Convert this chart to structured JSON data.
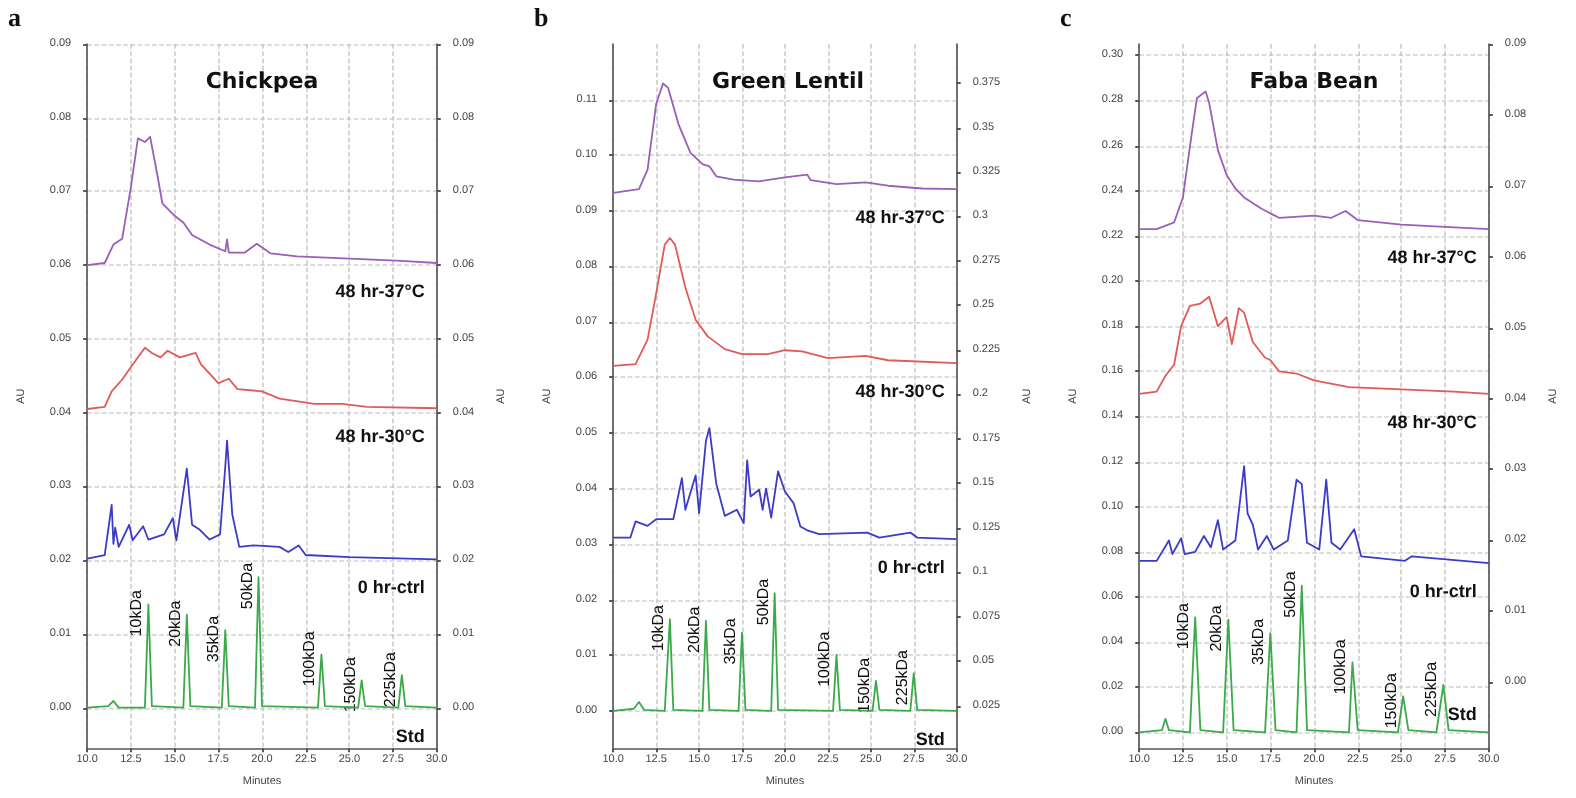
{
  "chart_data": [
    {
      "type": "line",
      "title": "Chickpea",
      "xlabel": "Minutes",
      "ylabel": "AU",
      "y2label": "AU",
      "marker": "none",
      "grid": true,
      "xlim": [
        10,
        30
      ],
      "xticks": [
        {
          "value": 10,
          "label": "10.0"
        },
        {
          "value": 12.5,
          "label": "12.5"
        },
        {
          "value": 15,
          "label": "15.0"
        },
        {
          "value": 17.5,
          "label": "17.5"
        },
        {
          "value": 20,
          "label": "20.0"
        },
        {
          "value": 22.5,
          "label": "22.5"
        },
        {
          "value": 25,
          "label": "25.0"
        },
        {
          "value": 27.5,
          "label": "27.5"
        },
        {
          "value": 30,
          "label": "30.0"
        }
      ],
      "ylim": [
        -0.0055,
        0.09
      ],
      "yticks": [
        {
          "value": 0,
          "label": "0.00"
        },
        {
          "value": 0.01,
          "label": "0.01"
        },
        {
          "value": 0.02,
          "label": "0.02"
        },
        {
          "value": 0.03,
          "label": "0.03"
        },
        {
          "value": 0.04,
          "label": "0.04"
        },
        {
          "value": 0.05,
          "label": "0.05"
        },
        {
          "value": 0.06,
          "label": "0.06"
        },
        {
          "value": 0.07,
          "label": "0.07"
        },
        {
          "value": 0.08,
          "label": "0.08"
        },
        {
          "value": 0.09,
          "label": "0.09"
        }
      ],
      "y2lim": [
        -0.0055,
        0.09
      ],
      "y2ticks": [
        {
          "value": 0,
          "label": "0.00"
        },
        {
          "value": 0.01,
          "label": "0.01"
        },
        {
          "value": 0.02,
          "label": "0.02"
        },
        {
          "value": 0.03,
          "label": "0.03"
        },
        {
          "value": 0.04,
          "label": "0.04"
        },
        {
          "value": 0.05,
          "label": "0.05"
        },
        {
          "value": 0.06,
          "label": "0.06"
        },
        {
          "value": 0.07,
          "label": "0.07"
        },
        {
          "value": 0.08,
          "label": "0.08"
        },
        {
          "value": 0.09,
          "label": "0.09"
        }
      ],
      "series": [
        {
          "name": "48 hr-37°C",
          "color": "#9a5fb8",
          "x": [
            10,
            11,
            11.5,
            12,
            12.5,
            12.9,
            13.3,
            13.6,
            14,
            14.3,
            15,
            15.5,
            16,
            17,
            17.9,
            18,
            18.1,
            19,
            19.7,
            20.5,
            22,
            25,
            28,
            30
          ],
          "values": [
            0.06,
            0.0603,
            0.0628,
            0.0636,
            0.0706,
            0.0772,
            0.0767,
            0.0774,
            0.0724,
            0.0684,
            0.0667,
            0.0658,
            0.0641,
            0.0628,
            0.0619,
            0.0635,
            0.0617,
            0.0617,
            0.0629,
            0.0616,
            0.0612,
            0.0609,
            0.0606,
            0.0603
          ]
        },
        {
          "name": "48 hr-30°C",
          "color": "#e05a5a",
          "x": [
            10,
            11,
            11.4,
            12,
            12.5,
            13.3,
            13.7,
            14.2,
            14.6,
            15.3,
            16.2,
            16.5,
            17.5,
            18.1,
            18.6,
            20,
            21,
            23,
            24.6,
            26,
            30
          ],
          "values": [
            0.0405,
            0.0408,
            0.0429,
            0.0445,
            0.0462,
            0.0488,
            0.0481,
            0.0475,
            0.0484,
            0.0475,
            0.0481,
            0.0466,
            0.044,
            0.0446,
            0.0432,
            0.0429,
            0.0419,
            0.0412,
            0.0412,
            0.0408,
            0.0406
          ]
        },
        {
          "name": "0 hr-ctrl",
          "color": "#3b3bc8",
          "x": [
            10,
            11,
            11.4,
            11.5,
            11.6,
            11.8,
            12.4,
            12.6,
            13.2,
            13.5,
            14.4,
            14.9,
            15.1,
            15.7,
            16,
            16.4,
            17,
            17.6,
            17.9,
            18,
            18.3,
            18.7,
            19.5,
            21,
            21.5,
            22.1,
            22.5,
            25,
            30
          ],
          "values": [
            0.0202,
            0.0207,
            0.0275,
            0.0222,
            0.0244,
            0.0218,
            0.0248,
            0.0227,
            0.0246,
            0.0228,
            0.0235,
            0.0257,
            0.0227,
            0.0324,
            0.0248,
            0.0242,
            0.0228,
            0.0235,
            0.0327,
            0.0362,
            0.0262,
            0.0218,
            0.022,
            0.0218,
            0.0211,
            0.022,
            0.0207,
            0.0204,
            0.0201
          ]
        },
        {
          "name": "Std",
          "color": "#3aaa4a",
          "x": [
            10,
            11.2,
            11.5,
            11.8,
            13.3,
            13.5,
            13.7,
            15.5,
            15.7,
            15.9,
            17.7,
            17.9,
            18.1,
            19.6,
            19.8,
            20,
            23.2,
            23.4,
            23.6,
            25.5,
            25.7,
            25.9,
            27.8,
            28,
            28.2,
            30
          ],
          "values": [
            0,
            0.0002,
            0.0009,
            0,
            0,
            0.014,
            0.0002,
            0,
            0.0126,
            0.0002,
            0,
            0.0105,
            0.0002,
            0,
            0.0177,
            0.0002,
            0,
            0.0072,
            0.0002,
            0,
            0.0037,
            0.0002,
            0,
            0.0044,
            0.0002,
            0
          ]
        }
      ],
      "annotations": [
        "a",
        {
          "text": "10kDa",
          "x": 13.5,
          "y": 0.014
        },
        {
          "text": "20kDa",
          "x": 15.7,
          "y": 0.0126
        },
        {
          "text": "35kDa",
          "x": 17.9,
          "y": 0.0105
        },
        {
          "text": "50kDa",
          "x": 19.8,
          "y": 0.0177
        },
        {
          "text": "100kDa",
          "x": 23.4,
          "y": 0.0072
        },
        {
          "text": "150kDa",
          "x": 25.7,
          "y": 0.0037
        },
        {
          "text": "225kDa",
          "x": 28,
          "y": 0.0044
        }
      ]
    },
    {
      "type": "line",
      "title": "Green Lentil",
      "xlabel": "Minutes",
      "ylabel": "AU",
      "y2label": "AU",
      "marker": "none",
      "grid": true,
      "xlim": [
        10,
        30
      ],
      "xticks": [
        {
          "value": 10,
          "label": "10.0"
        },
        {
          "value": 12.5,
          "label": "12.5"
        },
        {
          "value": 15,
          "label": "15.0"
        },
        {
          "value": 17.5,
          "label": "17.5"
        },
        {
          "value": 20,
          "label": "20.0"
        },
        {
          "value": 22.5,
          "label": "22.5"
        },
        {
          "value": 25,
          "label": "25.0"
        },
        {
          "value": 27.5,
          "label": "27.5"
        },
        {
          "value": 30,
          "label": "30.0"
        }
      ],
      "ylim": [
        -0.0067,
        0.12
      ],
      "yticks": [
        {
          "value": 0,
          "label": "0.00"
        },
        {
          "value": 0.01,
          "label": "0.01"
        },
        {
          "value": 0.02,
          "label": "0.02"
        },
        {
          "value": 0.03,
          "label": "0.03"
        },
        {
          "value": 0.04,
          "label": "0.04"
        },
        {
          "value": 0.05,
          "label": "0.05"
        },
        {
          "value": 0.06,
          "label": "0.06"
        },
        {
          "value": 0.07,
          "label": "0.07"
        },
        {
          "value": 0.08,
          "label": "0.08"
        },
        {
          "value": 0.09,
          "label": "0.09"
        },
        {
          "value": 0.1,
          "label": "0.10"
        },
        {
          "value": 0.11,
          "label": "0.11"
        }
      ],
      "y2lim": [
        0.001,
        0.397
      ],
      "y2ticks": [
        0.025,
        0.05,
        0.075,
        0.1,
        0.125,
        0.15,
        0.175,
        0.2,
        0.225,
        0.25,
        0.275,
        0.3,
        0.325,
        0.35,
        0.375
      ],
      "series": [
        {
          "name": "48 hr-37°C",
          "color": "#9a5fb8",
          "x": [
            10,
            11.5,
            12,
            12.5,
            12.9,
            13.2,
            13.8,
            14.5,
            15.2,
            15.6,
            16,
            17,
            18.5,
            20,
            21.3,
            21.5,
            23,
            24.7,
            26,
            28,
            30
          ],
          "values": [
            0.0932,
            0.0939,
            0.0974,
            0.1092,
            0.1129,
            0.1121,
            0.1056,
            0.1004,
            0.0984,
            0.098,
            0.0962,
            0.0956,
            0.0953,
            0.096,
            0.0965,
            0.0955,
            0.0948,
            0.0951,
            0.0945,
            0.094,
            0.0939
          ]
        },
        {
          "name": "48 hr-30°C",
          "color": "#e05a5a",
          "x": [
            10,
            11.3,
            12,
            12.5,
            13,
            13.3,
            13.6,
            14.2,
            14.8,
            15.5,
            16.5,
            17.5,
            19,
            20,
            21,
            22.5,
            24.7,
            26,
            30
          ],
          "values": [
            0.0621,
            0.0624,
            0.0668,
            0.0751,
            0.0839,
            0.0851,
            0.0839,
            0.0762,
            0.0704,
            0.0674,
            0.0651,
            0.0642,
            0.0642,
            0.0649,
            0.0647,
            0.0635,
            0.0639,
            0.0631,
            0.0626
          ]
        },
        {
          "name": "0 hr-ctrl",
          "color": "#3b3bc8",
          "x": [
            10,
            11,
            11.3,
            12,
            12.5,
            13.5,
            14,
            14.2,
            14.8,
            15,
            15.4,
            15.6,
            16,
            16.5,
            17.2,
            17.6,
            17.8,
            18,
            18.5,
            18.7,
            18.9,
            19.2,
            19.6,
            20,
            20.5,
            20.9,
            21.3,
            22,
            24.8,
            25.5,
            27.3,
            27.7,
            30
          ],
          "values": [
            0.0312,
            0.0312,
            0.0341,
            0.0333,
            0.0345,
            0.0345,
            0.0419,
            0.0362,
            0.0424,
            0.0356,
            0.0486,
            0.0509,
            0.0409,
            0.0351,
            0.0362,
            0.0338,
            0.0451,
            0.0386,
            0.0398,
            0.0362,
            0.04,
            0.0348,
            0.0431,
            0.0395,
            0.0374,
            0.0332,
            0.0325,
            0.0318,
            0.0321,
            0.0312,
            0.0321,
            0.0312,
            0.0309
          ]
        },
        {
          "name": "Std",
          "color": "#3aaa4a",
          "x": [
            10,
            11.2,
            11.5,
            11.8,
            13,
            13.3,
            13.5,
            15.2,
            15.4,
            15.6,
            17.3,
            17.5,
            17.7,
            19.2,
            19.4,
            19.6,
            22.8,
            23,
            23.2,
            25.1,
            25.3,
            25.5,
            27.3,
            27.5,
            27.7,
            30
          ],
          "values": [
            0,
            0.0004,
            0.0016,
            0.0002,
            0,
            0.0165,
            0.0002,
            0,
            0.0162,
            0.0002,
            0,
            0.0141,
            0.0002,
            0,
            0.0212,
            0.0002,
            0,
            0.0101,
            0.0002,
            0,
            0.0054,
            0.0002,
            0,
            0.0068,
            0.0002,
            0
          ]
        }
      ],
      "annotations": [
        "b",
        {
          "text": "10kDa",
          "x": 13.3,
          "y": 0.0165
        },
        {
          "text": "20kDa",
          "x": 15.4,
          "y": 0.0162
        },
        {
          "text": "35kDa",
          "x": 17.5,
          "y": 0.0141
        },
        {
          "text": "50kDa",
          "x": 19.4,
          "y": 0.0212
        },
        {
          "text": "100kDa",
          "x": 23,
          "y": 0.0101
        },
        {
          "text": "150kDa",
          "x": 25.3,
          "y": 0.0054
        },
        {
          "text": "225kDa",
          "x": 27.5,
          "y": 0.0068
        }
      ]
    },
    {
      "type": "line",
      "title": "Faba Bean",
      "xlabel": "Minutes",
      "ylabel": "AU",
      "y2label": "AU",
      "marker": "none",
      "grid": true,
      "xlim": [
        10,
        30
      ],
      "xticks": [
        {
          "value": 10,
          "label": "10.0"
        },
        {
          "value": 12.5,
          "label": "12.5"
        },
        {
          "value": 15,
          "label": "15.0"
        },
        {
          "value": 17.5,
          "label": "17.5"
        },
        {
          "value": 20,
          "label": "20.0"
        },
        {
          "value": 22.5,
          "label": "22.5"
        },
        {
          "value": 25,
          "label": "25.0"
        },
        {
          "value": 27.5,
          "label": "27.5"
        },
        {
          "value": 30,
          "label": "30.0"
        }
      ],
      "ylim": [
        -0.007,
        0.305
      ],
      "yticks": [
        {
          "value": 0,
          "label": "0.00"
        },
        {
          "value": 0.02,
          "label": "0.02"
        },
        {
          "value": 0.04,
          "label": "0.04"
        },
        {
          "value": 0.06,
          "label": "0.06"
        },
        {
          "value": 0.08,
          "label": "0.08"
        },
        {
          "value": 0.1,
          "label": "0.10"
        },
        {
          "value": 0.12,
          "label": "0.12"
        },
        {
          "value": 0.14,
          "label": "0.14"
        },
        {
          "value": 0.16,
          "label": "0.16"
        },
        {
          "value": 0.18,
          "label": "0.18"
        },
        {
          "value": 0.2,
          "label": "0.20"
        },
        {
          "value": 0.22,
          "label": "0.22"
        },
        {
          "value": 0.24,
          "label": "0.24"
        },
        {
          "value": 0.26,
          "label": "0.26"
        },
        {
          "value": 0.28,
          "label": "0.28"
        },
        {
          "value": 0.3,
          "label": "0.30"
        }
      ],
      "y2lim": [
        -0.0093,
        0.09
      ],
      "y2ticks": [
        {
          "value": 0,
          "label": "0.00"
        },
        {
          "value": 0.01,
          "label": "0.01"
        },
        {
          "value": 0.02,
          "label": "0.02"
        },
        {
          "value": 0.03,
          "label": "0.03"
        },
        {
          "value": 0.04,
          "label": "0.04"
        },
        {
          "value": 0.05,
          "label": "0.05"
        },
        {
          "value": 0.06,
          "label": "0.06"
        },
        {
          "value": 0.07,
          "label": "0.07"
        },
        {
          "value": 0.08,
          "label": "0.08"
        },
        {
          "value": 0.09,
          "label": "0.09"
        }
      ],
      "series": [
        {
          "name": "48 hr-37°C",
          "color": "#9a5fb8",
          "x": [
            10,
            11,
            12,
            12.5,
            13,
            13.3,
            13.8,
            14,
            14.5,
            15,
            15.5,
            16,
            17,
            18,
            20,
            21,
            21.8,
            22.5,
            25,
            30
          ],
          "values": [
            0.223,
            0.223,
            0.226,
            0.237,
            0.265,
            0.281,
            0.284,
            0.279,
            0.258,
            0.247,
            0.241,
            0.237,
            0.232,
            0.228,
            0.229,
            0.228,
            0.231,
            0.227,
            0.225,
            0.223
          ]
        },
        {
          "name": "48 hr-30°C",
          "color": "#e05a5a",
          "x": [
            10,
            11,
            11.5,
            12,
            12.4,
            12.9,
            13.5,
            14,
            14.5,
            15,
            15.3,
            15.7,
            16,
            16.5,
            17.2,
            17.5,
            18,
            19,
            20,
            22,
            25,
            28,
            30
          ],
          "values": [
            0.15,
            0.151,
            0.158,
            0.163,
            0.18,
            0.189,
            0.19,
            0.193,
            0.18,
            0.184,
            0.172,
            0.188,
            0.186,
            0.173,
            0.166,
            0.165,
            0.16,
            0.159,
            0.156,
            0.153,
            0.152,
            0.151,
            0.15
          ]
        },
        {
          "name": "0 hr-ctrl",
          "color": "#3b3bc8",
          "x": [
            10,
            11,
            11.7,
            11.9,
            12.4,
            12.6,
            13.2,
            13.7,
            14.1,
            14.5,
            14.8,
            15.5,
            16,
            16.2,
            16.5,
            16.8,
            17.3,
            17.7,
            18.5,
            19,
            19.3,
            19.6,
            20.3,
            20.7,
            21,
            21.5,
            22.3,
            22.7,
            25.2,
            25.6,
            30
          ],
          "values": [
            0.076,
            0.076,
            0.085,
            0.079,
            0.086,
            0.079,
            0.08,
            0.087,
            0.082,
            0.094,
            0.081,
            0.085,
            0.118,
            0.097,
            0.092,
            0.081,
            0.087,
            0.081,
            0.085,
            0.112,
            0.11,
            0.084,
            0.081,
            0.112,
            0.084,
            0.081,
            0.09,
            0.078,
            0.076,
            0.078,
            0.075
          ]
        },
        {
          "name": "Std",
          "color": "#3aaa4a",
          "x": [
            10,
            11.3,
            11.5,
            11.7,
            12.9,
            13.2,
            13.5,
            14.8,
            15.1,
            15.4,
            17.2,
            17.5,
            17.8,
            19,
            19.3,
            19.6,
            22,
            22.2,
            22.5,
            24.8,
            25.1,
            25.4,
            27,
            27.4,
            27.7,
            30
          ],
          "values": [
            0,
            0.001,
            0.006,
            0.001,
            0,
            0.051,
            0.001,
            0,
            0.05,
            0.001,
            0,
            0.044,
            0.001,
            0,
            0.065,
            0.001,
            0,
            0.031,
            0.001,
            0,
            0.016,
            0.001,
            0,
            0.021,
            0.001,
            0
          ]
        }
      ],
      "annotations": [
        "c",
        {
          "text": "10kDa",
          "x": 13.2,
          "y": 0.051
        },
        {
          "text": "20kDa",
          "x": 15.1,
          "y": 0.05
        },
        {
          "text": "35kDa",
          "x": 17.5,
          "y": 0.044
        },
        {
          "text": "50kDa",
          "x": 19.3,
          "y": 0.065
        },
        {
          "text": "100kDa",
          "x": 22.2,
          "y": 0.031
        },
        {
          "text": "150kDa",
          "x": 25.1,
          "y": 0.016
        },
        {
          "text": "225kDa",
          "x": 27.4,
          "y": 0.021
        }
      ]
    }
  ]
}
